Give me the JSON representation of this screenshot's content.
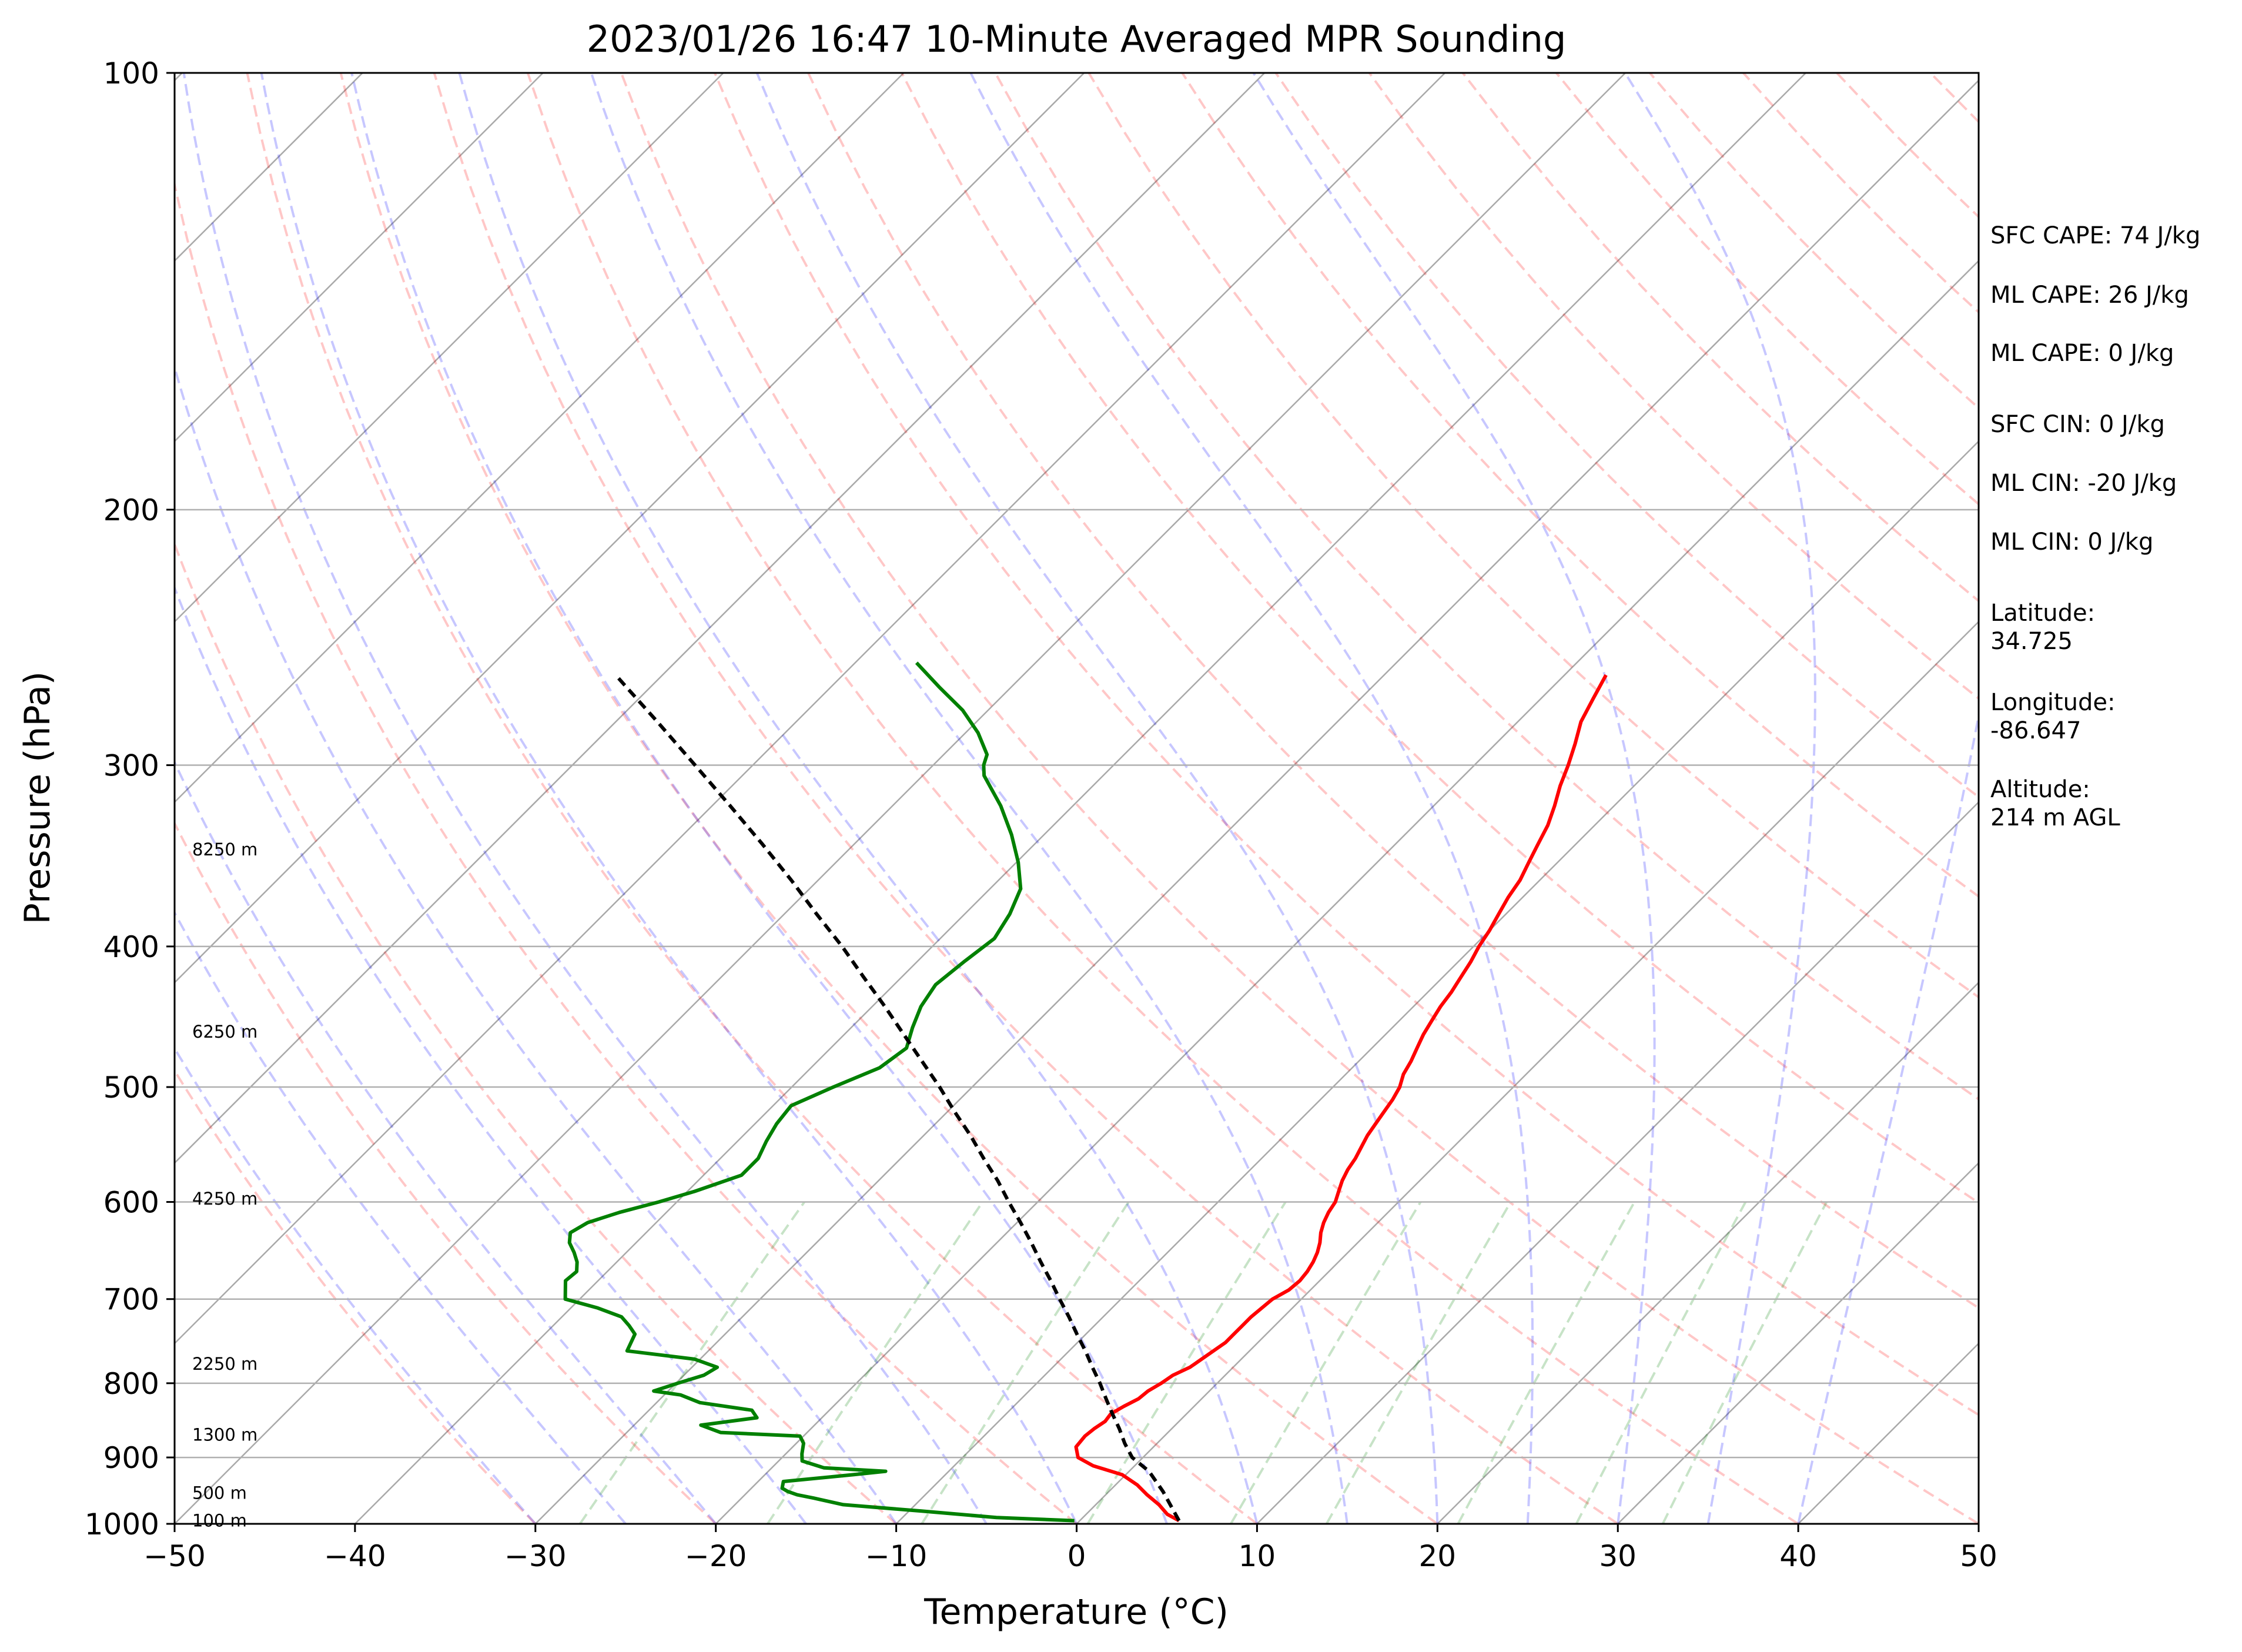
{
  "chart_data": {
    "type": "line",
    "title": "2023/01/26 16:47 10-Minute Averaged MPR Sounding",
    "xlabel": "Temperature (°C)",
    "ylabel": "Pressure (hPa)",
    "xlim": [
      -50,
      50
    ],
    "ylim": [
      1000,
      100
    ],
    "yscale": "log",
    "skew": true,
    "xticks": [
      -50,
      -40,
      -30,
      -20,
      -10,
      0,
      10,
      20,
      30,
      40,
      50
    ],
    "xtick_labels": [
      "−50",
      "−40",
      "−30",
      "−20",
      "−10",
      "0",
      "10",
      "20",
      "30",
      "40",
      "50"
    ],
    "yticks": [
      1000,
      900,
      800,
      700,
      600,
      500,
      400,
      300,
      200,
      100
    ],
    "ytick_labels": [
      "1000",
      "900",
      "800",
      "700",
      "600",
      "500",
      "400",
      "300",
      "200",
      "100"
    ],
    "grid": "horizontal",
    "background_lines": [
      "isotherms",
      "dry adiabats",
      "moist adiabats",
      "mixing ratio lines"
    ],
    "series": [
      {
        "key": "temperature",
        "color": "#ff0000",
        "p": [
          995,
          985,
          970,
          955,
          940,
          925,
          912,
          900,
          885,
          870,
          860,
          850,
          840,
          830,
          820,
          810,
          800,
          790,
          780,
          770,
          760,
          750,
          740,
          730,
          720,
          700,
          690,
          680,
          670,
          660,
          650,
          640,
          630,
          620,
          610,
          600,
          590,
          580,
          570,
          560,
          550,
          540,
          530,
          520,
          510,
          500,
          490,
          480,
          470,
          460,
          450,
          440,
          430,
          420,
          410,
          400,
          390,
          380,
          370,
          360,
          350,
          340,
          330,
          320,
          310,
          300,
          290,
          280,
          270,
          260
        ],
        "t": [
          5.5,
          4.5,
          3.5,
          2.3,
          1.2,
          -0.2,
          -2.3,
          -3.6,
          -4.3,
          -4.4,
          -4.3,
          -4.1,
          -4.2,
          -3.9,
          -3.5,
          -3.4,
          -3.1,
          -2.9,
          -2.4,
          -2.2,
          -2.0,
          -1.8,
          -1.8,
          -1.8,
          -1.8,
          -1.6,
          -1.2,
          -1.1,
          -1.2,
          -1.4,
          -1.7,
          -2.1,
          -2.6,
          -3.0,
          -3.3,
          -3.5,
          -3.9,
          -4.3,
          -4.6,
          -4.8,
          -5.1,
          -5.4,
          -5.6,
          -5.8,
          -6.0,
          -6.3,
          -6.8,
          -7.1,
          -7.5,
          -7.9,
          -8.2,
          -8.5,
          -8.7,
          -9.0,
          -9.3,
          -9.7,
          -10.0,
          -10.4,
          -10.8,
          -11.1,
          -11.6,
          -12.1,
          -12.6,
          -13.3,
          -14.1,
          -14.8,
          -15.6,
          -16.5,
          -17.1,
          -17.7
        ]
      },
      {
        "key": "dewpoint",
        "color": "#008000",
        "p": [
          995,
          990,
          980,
          970,
          960,
          955,
          950,
          945,
          935,
          925,
          920,
          915,
          905,
          895,
          880,
          870,
          865,
          855,
          845,
          835,
          825,
          815,
          810,
          800,
          790,
          780,
          770,
          760,
          740,
          730,
          720,
          710,
          700,
          680,
          670,
          660,
          650,
          640,
          630,
          620,
          610,
          600,
          590,
          575,
          560,
          545,
          530,
          515,
          500,
          485,
          470,
          455,
          440,
          425,
          410,
          395,
          380,
          365,
          350,
          335,
          320,
          305,
          300,
          295,
          285,
          275,
          265,
          255
        ],
        "t": [
          -0.3,
          -4.8,
          -9.3,
          -14.0,
          -16.0,
          -17.1,
          -17.8,
          -18.3,
          -18.6,
          -15.1,
          -13.5,
          -17.1,
          -18.7,
          -19.1,
          -19.6,
          -20.2,
          -24.8,
          -26.3,
          -23.6,
          -24.3,
          -27.6,
          -29.1,
          -30.8,
          -29.9,
          -28.9,
          -28.6,
          -30.3,
          -34.5,
          -35.0,
          -35.8,
          -36.7,
          -38.5,
          -40.8,
          -41.8,
          -41.7,
          -42.2,
          -42.9,
          -43.7,
          -44.2,
          -43.8,
          -42.6,
          -41.0,
          -39.6,
          -37.9,
          -37.9,
          -38.4,
          -38.8,
          -39.0,
          -37.7,
          -36.2,
          -35.8,
          -36.6,
          -37.3,
          -37.7,
          -37.4,
          -37.0,
          -37.5,
          -38.3,
          -39.9,
          -41.8,
          -44.0,
          -46.6,
          -47.2,
          -47.6,
          -49.3,
          -51.4,
          -54.0,
          -56.6
        ]
      },
      {
        "key": "parcel",
        "color": "#000000",
        "style": "dashed",
        "p": [
          995,
          950,
          920,
          900,
          880,
          860,
          840,
          820,
          800,
          780,
          760,
          740,
          720,
          700,
          680,
          660,
          640,
          620,
          600,
          580,
          560,
          540,
          520,
          500,
          480,
          460,
          440,
          420,
          400,
          380,
          360,
          340,
          320,
          300,
          280,
          260
        ],
        "t": [
          5.5,
          3.0,
          1.1,
          -0.6,
          -1.8,
          -2.9,
          -4.1,
          -5.3,
          -6.5,
          -7.8,
          -9.1,
          -10.5,
          -11.9,
          -13.4,
          -14.9,
          -16.5,
          -18.1,
          -19.8,
          -21.6,
          -23.4,
          -25.4,
          -27.4,
          -29.6,
          -31.8,
          -34.2,
          -36.7,
          -39.3,
          -42.1,
          -45.0,
          -48.2,
          -51.5,
          -55.1,
          -59.0,
          -63.2,
          -67.7,
          -72.6
        ]
      }
    ],
    "height_labels": [
      {
        "text": "100 m",
        "p": 995
      },
      {
        "text": "500 m",
        "p": 952
      },
      {
        "text": "1300 m",
        "p": 868
      },
      {
        "text": "2250 m",
        "p": 776
      },
      {
        "text": "4250 m",
        "p": 597
      },
      {
        "text": "6250 m",
        "p": 458
      },
      {
        "text": "8250 m",
        "p": 343
      }
    ],
    "side_panel": [
      "SFC CAPE: 74 J/kg",
      "ML CAPE: 26 J/kg",
      "ML CAPE: 0 J/kg",
      "SFC CIN: 0 J/kg",
      "ML CIN: -20 J/kg",
      "ML CIN: 0 J/kg",
      "Latitude:",
      "34.725",
      "Longitude:",
      "-86.647",
      "Altitude:",
      "214 m AGL"
    ]
  }
}
